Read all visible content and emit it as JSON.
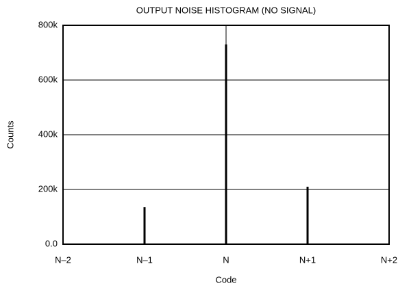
{
  "chart_data": {
    "type": "bar",
    "title": "OUTPUT NOISE HISTOGRAM (NO SIGNAL)",
    "x_label": "Code",
    "y_label": "Counts",
    "categories": [
      "N–2",
      "N–1",
      "N",
      "N+1",
      "N+2"
    ],
    "values": [
      0,
      135000,
      730000,
      210000,
      0
    ],
    "color": "#000000",
    "ylim": [
      0,
      800000
    ],
    "yticks": [
      {
        "value": 0,
        "label": "0.0"
      },
      {
        "value": 200000,
        "label": "200k"
      },
      {
        "value": 400000,
        "label": "400k"
      },
      {
        "value": 600000,
        "label": "600k"
      },
      {
        "value": 800000,
        "label": "800k"
      }
    ],
    "grid": true
  }
}
